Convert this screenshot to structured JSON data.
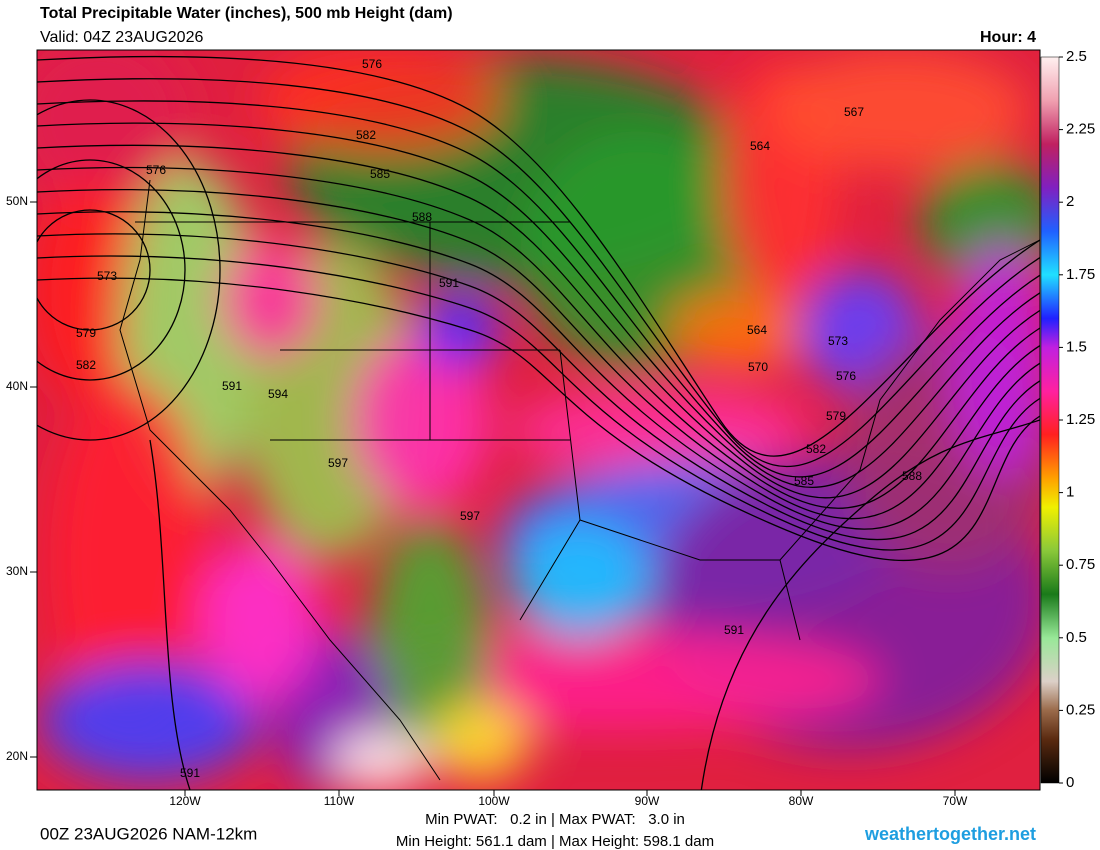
{
  "header": {
    "title": "Total Precipitable Water (inches), 500 mb Height (dam)",
    "valid": "Valid: 04Z 23AUG2026",
    "hour": "Hour: 4"
  },
  "colorbar": {
    "range": [
      0,
      2.5
    ],
    "ticks": [
      0,
      0.25,
      0.5,
      0.75,
      1,
      1.25,
      1.5,
      1.75,
      2,
      2.25,
      2.5
    ]
  },
  "latitude_labels": [
    "50N",
    "40N",
    "30N",
    "20N"
  ],
  "longitude_labels": [
    "120W",
    "110W",
    "100W",
    "90W",
    "80W",
    "70W"
  ],
  "contour_labels": [
    576,
    582,
    585,
    588,
    591,
    576,
    573,
    579,
    582,
    591,
    594,
    597,
    597,
    567,
    564,
    564,
    570,
    573,
    576,
    579,
    582,
    585,
    588,
    591,
    591
  ],
  "footer": {
    "run": "00Z 23AUG2026 NAM-12km",
    "pwat": "Min PWAT:   0.2 in | Max PWAT:   3.0 in",
    "height": "Min Height: 561.1 dam | Max Height: 598.1 dam",
    "site": "weathertogether.net"
  }
}
